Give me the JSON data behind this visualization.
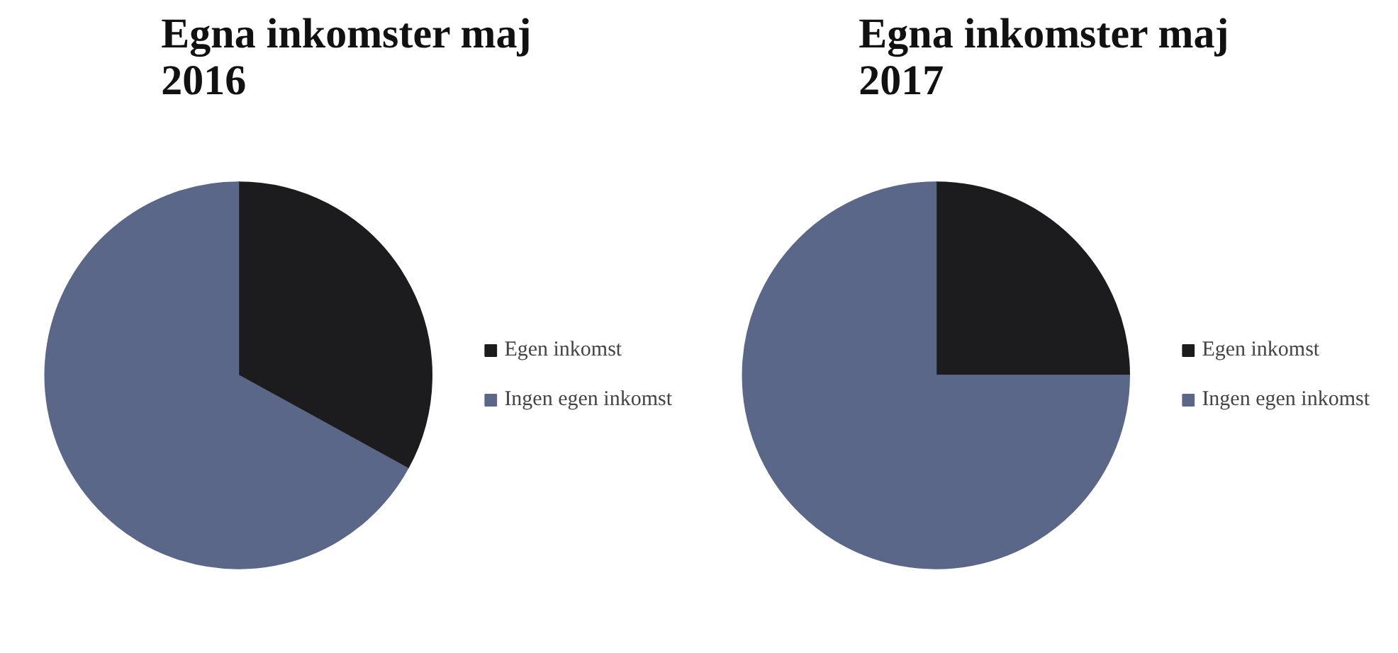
{
  "chart_data": [
    {
      "type": "pie",
      "title": "Egna inkomster maj 2016",
      "categories": [
        "Egen inkomst",
        "Ingen egen inkomst"
      ],
      "values": [
        33,
        67
      ],
      "colors": [
        "#1c1c1e",
        "#5b6788"
      ],
      "legend": "right"
    },
    {
      "type": "pie",
      "title": "Egna inkomster maj 2017",
      "categories": [
        "Egen inkomst",
        "Ingen egen inkomst"
      ],
      "values": [
        25,
        75
      ],
      "colors": [
        "#1c1c1e",
        "#5b6788"
      ],
      "legend": "right"
    }
  ]
}
